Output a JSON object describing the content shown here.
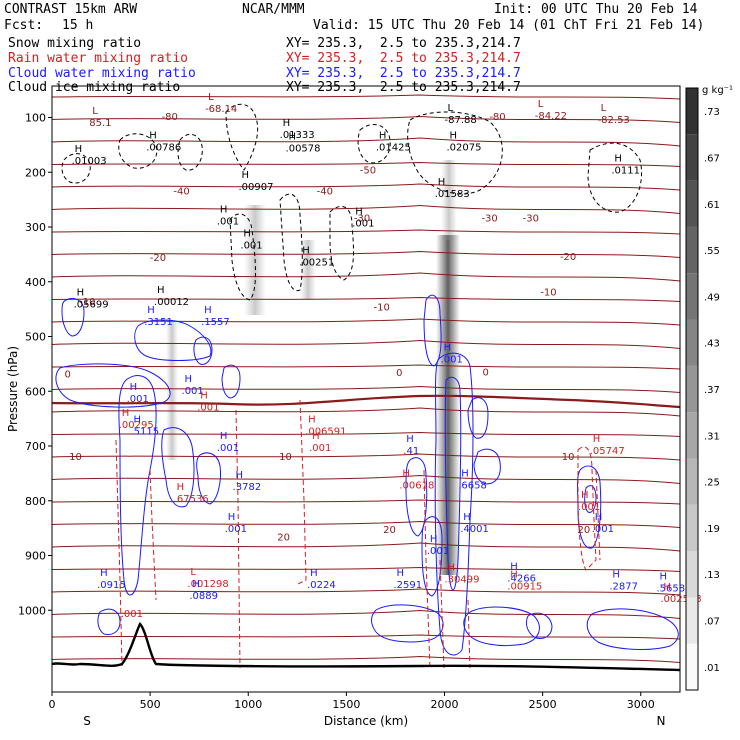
{
  "header": {
    "title": "CONTRAST 15km ARW",
    "center": "NCAR/MMM",
    "init": "Init: 00 UTC Thu 20 Feb 14",
    "fcst_label": "Fcst:",
    "fcst_value": "15 h",
    "valid": "Valid: 15 UTC Thu 20 Feb 14 (01 ChT Fri 21 Feb 14)"
  },
  "fields": [
    {
      "name": "Snow mixing ratio",
      "xy": "XY= 235.3,  2.5 to 235.3,214.7",
      "color": "#000000"
    },
    {
      "name": "Rain water mixing ratio",
      "xy": "XY= 235.3,  2.5 to 235.3,214.7",
      "color": "#d42020"
    },
    {
      "name": "Cloud water mixing ratio",
      "xy": "XY= 235.3,  2.5 to 235.3,214.7",
      "color": "#1a1aff"
    },
    {
      "name": "Cloud ice mixing ratio",
      "xy": "XY= 235.3,  2.5 to 235.3,214.7",
      "color": "#000000"
    }
  ],
  "chart_data": {
    "type": "cross-section contour",
    "xlabel": "Distance (km)",
    "ylabel": "Pressure (hPa)",
    "xlim": [
      0,
      3200
    ],
    "ylim": [
      1050,
      80
    ],
    "xticks": [
      0,
      500,
      1000,
      1500,
      2000,
      2500,
      3000
    ],
    "yticks": [
      100,
      200,
      300,
      400,
      500,
      600,
      700,
      800,
      900,
      1000
    ],
    "endpoints": {
      "left": "S",
      "right": "N"
    },
    "colorbar": {
      "unit": "g kg⁻¹",
      "levels": [
        ".01",
        ".07",
        ".13",
        ".19",
        ".25",
        ".31",
        ".37",
        ".43",
        ".49",
        ".55",
        ".61",
        ".67",
        ".73"
      ]
    },
    "temperature_contours": [
      {
        "text": "-80",
        "x": 600,
        "p": 97
      },
      {
        "text": "-80",
        "x": 2270,
        "p": 97
      },
      {
        "text": "-50",
        "x": 1610,
        "p": 195
      },
      {
        "text": "-40",
        "x": 660,
        "p": 233
      },
      {
        "text": "-40",
        "x": 1390,
        "p": 233
      },
      {
        "text": "-30",
        "x": 1580,
        "p": 283
      },
      {
        "text": "-30",
        "x": 2230,
        "p": 283
      },
      {
        "text": "-30",
        "x": 2440,
        "p": 283
      },
      {
        "text": "-20",
        "x": 540,
        "p": 355
      },
      {
        "text": "-20",
        "x": 2630,
        "p": 353
      },
      {
        "text": "-10",
        "x": 180,
        "p": 435
      },
      {
        "text": "-10",
        "x": 1680,
        "p": 445
      },
      {
        "text": "-10",
        "x": 2530,
        "p": 418
      },
      {
        "text": "0",
        "x": 80,
        "p": 568
      },
      {
        "text": "0",
        "x": 1770,
        "p": 565
      },
      {
        "text": "0",
        "x": 2210,
        "p": 564
      },
      {
        "text": "10",
        "x": 120,
        "p": 718
      },
      {
        "text": "10",
        "x": 1190,
        "p": 718
      },
      {
        "text": "10",
        "x": 2630,
        "p": 718
      },
      {
        "text": "20",
        "x": 1180,
        "p": 865
      },
      {
        "text": "20",
        "x": 1720,
        "p": 852
      },
      {
        "text": "20",
        "x": 2710,
        "p": 852
      }
    ],
    "extrema": [
      {
        "mark": "L",
        "text": "-68.14",
        "x": 780,
        "p": 83,
        "color": "#8b1a1a"
      },
      {
        "mark": "L",
        "text": "85.1",
        "x": 190,
        "p": 108,
        "color": "#8b1a1a"
      },
      {
        "mark": "L",
        "text": "-87.88",
        "x": 2000,
        "p": 103,
        "color": "#000000"
      },
      {
        "mark": "L",
        "text": "-84.22",
        "x": 2460,
        "p": 95,
        "color": "#8b1a1a"
      },
      {
        "mark": "L",
        "text": "-82.53",
        "x": 2780,
        "p": 103,
        "color": "#8b1a1a"
      },
      {
        "mark": "H",
        "text": ".01333",
        "x": 1160,
        "p": 130,
        "color": "#000000"
      },
      {
        "mark": "H",
        "text": ".00786",
        "x": 480,
        "p": 153,
        "color": "#000000"
      },
      {
        "mark": "H",
        "text": ".00578",
        "x": 1190,
        "p": 155,
        "color": "#000000"
      },
      {
        "mark": "H",
        "text": ".01425",
        "x": 1650,
        "p": 153,
        "color": "#000000"
      },
      {
        "mark": "H",
        "text": ".02075",
        "x": 2010,
        "p": 153,
        "color": "#000000"
      },
      {
        "mark": "H",
        "text": ".01003",
        "x": 100,
        "p": 178,
        "color": "#000000"
      },
      {
        "mark": "H",
        "text": ".0111",
        "x": 2850,
        "p": 195,
        "color": "#000000"
      },
      {
        "mark": "H",
        "text": ".00907",
        "x": 950,
        "p": 225,
        "color": "#000000"
      },
      {
        "mark": "H",
        "text": ".01583",
        "x": 1950,
        "p": 238,
        "color": "#000000"
      },
      {
        "mark": "H",
        "text": ".001",
        "x": 840,
        "p": 288,
        "color": "#000000"
      },
      {
        "mark": "H",
        "text": ".001",
        "x": 1530,
        "p": 292,
        "color": "#000000"
      },
      {
        "mark": "H",
        "text": ".001",
        "x": 960,
        "p": 332,
        "color": "#000000"
      },
      {
        "mark": "H",
        "text": ".00251",
        "x": 1260,
        "p": 363,
        "color": "#000000"
      },
      {
        "mark": "H",
        "text": ".05699",
        "x": 110,
        "p": 440,
        "color": "#000000"
      },
      {
        "mark": "H",
        "text": ".00012",
        "x": 520,
        "p": 435,
        "color": "#000000"
      },
      {
        "mark": "H",
        "text": ".3151",
        "x": 470,
        "p": 472,
        "color": "#1a1aff"
      },
      {
        "mark": "H",
        "text": ".1557",
        "x": 760,
        "p": 472,
        "color": "#1a1aff"
      },
      {
        "mark": "H",
        "text": ".001",
        "x": 1980,
        "p": 540,
        "color": "#1a1aff"
      },
      {
        "mark": "H",
        "text": ".001",
        "x": 380,
        "p": 612,
        "color": "#1a1aff"
      },
      {
        "mark": "H",
        "text": ".001",
        "x": 660,
        "p": 598,
        "color": "#1a1aff"
      },
      {
        "mark": "H",
        "text": ".001",
        "x": 740,
        "p": 628,
        "color": "#d42020"
      },
      {
        "mark": "H",
        "text": ".00295",
        "x": 340,
        "p": 660,
        "color": "#d42020"
      },
      {
        "mark": "H",
        "text": ".5115",
        "x": 400,
        "p": 672,
        "color": "#1a1aff"
      },
      {
        "mark": "H",
        "text": ".006591",
        "x": 1290,
        "p": 672,
        "color": "#d42020"
      },
      {
        "mark": "H",
        "text": ".001",
        "x": 840,
        "p": 702,
        "color": "#1a1aff"
      },
      {
        "mark": "H",
        "text": ".001",
        "x": 1310,
        "p": 702,
        "color": "#d42020"
      },
      {
        "mark": "H",
        "text": ".41",
        "x": 1790,
        "p": 707,
        "color": "#1a1aff"
      },
      {
        "mark": "H",
        "text": ".05747",
        "x": 2740,
        "p": 707,
        "color": "#d42020"
      },
      {
        "mark": "H",
        "text": ".00618",
        "x": 1770,
        "p": 770,
        "color": "#d42020"
      },
      {
        "mark": "H",
        "text": ".6658",
        "x": 2070,
        "p": 770,
        "color": "#1a1aff"
      },
      {
        "mark": "H",
        "text": ".3782",
        "x": 920,
        "p": 773,
        "color": "#1a1aff"
      },
      {
        "mark": "H",
        "text": ".67536",
        "x": 620,
        "p": 795,
        "color": "#d42020"
      },
      {
        "mark": "H",
        "text": ".001",
        "x": 2680,
        "p": 810,
        "color": "#d42020"
      },
      {
        "mark": "H",
        "text": ".4001",
        "x": 2080,
        "p": 850,
        "color": "#1a1aff"
      },
      {
        "mark": "H",
        "text": ".001",
        "x": 880,
        "p": 850,
        "color": "#1a1aff"
      },
      {
        "mark": "H",
        "text": ".001",
        "x": 2750,
        "p": 850,
        "color": "#1a1aff"
      },
      {
        "mark": "H",
        "text": ".001",
        "x": 1910,
        "p": 890,
        "color": "#1a1aff"
      },
      {
        "mark": "H",
        "text": ".4266",
        "x": 2320,
        "p": 940,
        "color": "#1a1aff"
      },
      {
        "mark": "H",
        "text": ".30499",
        "x": 2000,
        "p": 942,
        "color": "#d42020"
      },
      {
        "mark": "L",
        "text": ".001298",
        "x": 690,
        "p": 950,
        "color": "#d42020"
      },
      {
        "mark": "H",
        "text": ".0915",
        "x": 230,
        "p": 952,
        "color": "#1a1aff"
      },
      {
        "mark": "H",
        "text": ".0224",
        "x": 1300,
        "p": 952,
        "color": "#1a1aff"
      },
      {
        "mark": "H",
        "text": ".2591",
        "x": 1740,
        "p": 952,
        "color": "#1a1aff"
      },
      {
        "mark": "H",
        "text": ".00915",
        "x": 2320,
        "p": 955,
        "color": "#d42020"
      },
      {
        "mark": "H",
        "text": ".2877",
        "x": 2840,
        "p": 955,
        "color": "#1a1aff"
      },
      {
        "mark": "H",
        "text": ".5658",
        "x": 3080,
        "p": 958,
        "color": "#1a1aff"
      },
      {
        "mark": "H",
        "text": ".0889",
        "x": 700,
        "p": 972,
        "color": "#1a1aff"
      },
      {
        "mark": "H",
        "text": ".002513",
        "x": 3100,
        "p": 978,
        "color": "#d42020"
      },
      {
        "mark": "",
        "text": ".001",
        "x": 350,
        "p": 1005,
        "color": "#d42020"
      }
    ]
  }
}
